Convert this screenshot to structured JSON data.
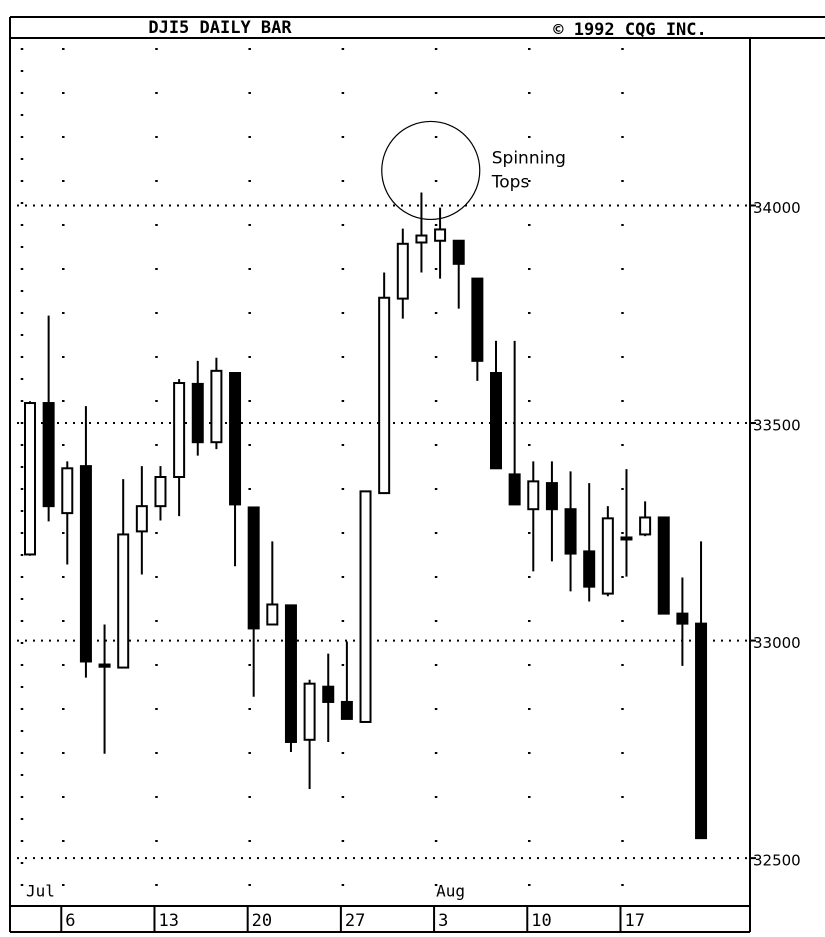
{
  "chart_data": {
    "type": "candlestick",
    "title": "DJI5 DAILY BAR",
    "copyright": "© 1992 CQG INC.",
    "annotation": [
      "Spinning",
      "Tops"
    ],
    "annotation_at": [
      21,
      22
    ],
    "categories": [
      null,
      null,
      "6",
      null,
      null,
      null,
      null,
      "13",
      null,
      null,
      null,
      null,
      "20",
      null,
      null,
      null,
      null,
      "27",
      null,
      null,
      null,
      null,
      "3",
      null,
      null,
      null,
      null,
      "10",
      null,
      null,
      null,
      null,
      "17",
      null,
      null,
      null,
      null
    ],
    "month_labels": [
      {
        "text": "Jul",
        "at": 0
      },
      {
        "text": "Aug",
        "at": 22
      }
    ],
    "open": [
      33198,
      33546,
      33293,
      33401,
      32945,
      32938,
      33251,
      33309,
      33376,
      33590,
      33456,
      33615,
      33306,
      33037,
      33081,
      32772,
      32894,
      32859,
      32813,
      33339,
      33786,
      33915,
      33919,
      33919,
      33832,
      33615,
      33382,
      33302,
      33362,
      33302,
      33205,
      33108,
      33237,
      33244,
      33283,
      33062,
      33039
    ],
    "high": [
      33550,
      33747,
      33412,
      33539,
      33037,
      33371,
      33401,
      33401,
      33601,
      33643,
      33650,
      33615,
      33306,
      33228,
      33081,
      32910,
      32970,
      32998,
      33343,
      33846,
      33947,
      34030,
      33995,
      33919,
      33832,
      33689,
      33689,
      33412,
      33412,
      33389,
      33362,
      33309,
      33394,
      33320,
      33283,
      33145,
      33228
    ],
    "low": [
      33195,
      33274,
      33175,
      32915,
      32740,
      32938,
      33152,
      33276,
      33286,
      33425,
      33440,
      33171,
      32871,
      33037,
      32744,
      32659,
      32767,
      32820,
      32813,
      33339,
      33740,
      33846,
      33832,
      33763,
      33597,
      33396,
      33313,
      33159,
      33182,
      33113,
      33090,
      33102,
      33147,
      33240,
      33062,
      32942,
      32546
    ],
    "close": [
      33546,
      33309,
      33396,
      32952,
      32940,
      33244,
      33309,
      33376,
      33592,
      33456,
      33620,
      33313,
      33028,
      33083,
      32767,
      32901,
      32859,
      32820,
      33343,
      33788,
      33912,
      33931,
      33945,
      33866,
      33643,
      33396,
      33313,
      33366,
      33302,
      33200,
      33124,
      33281,
      33233,
      33283,
      33062,
      33039,
      32546
    ],
    "ylim": [
      32390,
      34385
    ],
    "yticks": [
      32500,
      33000,
      33500,
      34000
    ],
    "grid": true,
    "up_color": "#ffffff",
    "down_color": "#000000"
  }
}
